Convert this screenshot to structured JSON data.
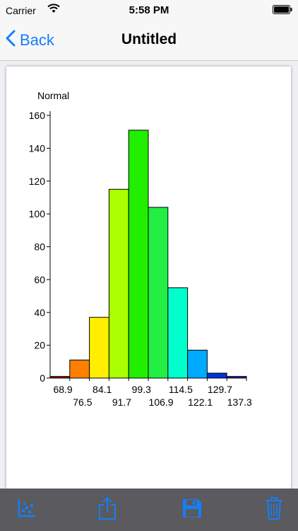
{
  "status_bar": {
    "carrier": "Carrier",
    "time": "5:58 PM"
  },
  "nav": {
    "back_label": "Back",
    "title": "Untitled"
  },
  "colors": {
    "accent": "#147efb",
    "toolbar_bg": "#5a5a5f",
    "toolbar_icon": "#147efb"
  },
  "toolbar": {
    "items": [
      {
        "icon": "scatter-plot-icon"
      },
      {
        "icon": "share-icon"
      },
      {
        "icon": "save-icon"
      },
      {
        "icon": "trash-icon"
      }
    ]
  },
  "chart_data": {
    "type": "bar",
    "title": "",
    "ylabel": "Normal",
    "xlabel": "",
    "ylim": [
      0,
      160
    ],
    "yticks": [
      0,
      20,
      40,
      60,
      80,
      100,
      120,
      140,
      160
    ],
    "grid": false,
    "bin_edges": [
      "68.9",
      "76.5",
      "84.1",
      "91.7",
      "99.3",
      "106.9",
      "114.5",
      "122.1",
      "129.7",
      "137.3"
    ],
    "values": [
      1,
      11,
      37,
      115,
      151,
      104,
      55,
      17,
      3,
      1
    ],
    "bar_colors": [
      "#a00000",
      "#ff7f00",
      "#ffee00",
      "#aaff00",
      "#22ee00",
      "#22ee44",
      "#00ffcc",
      "#00aaff",
      "#0033dd",
      "#1a1aaa"
    ]
  }
}
